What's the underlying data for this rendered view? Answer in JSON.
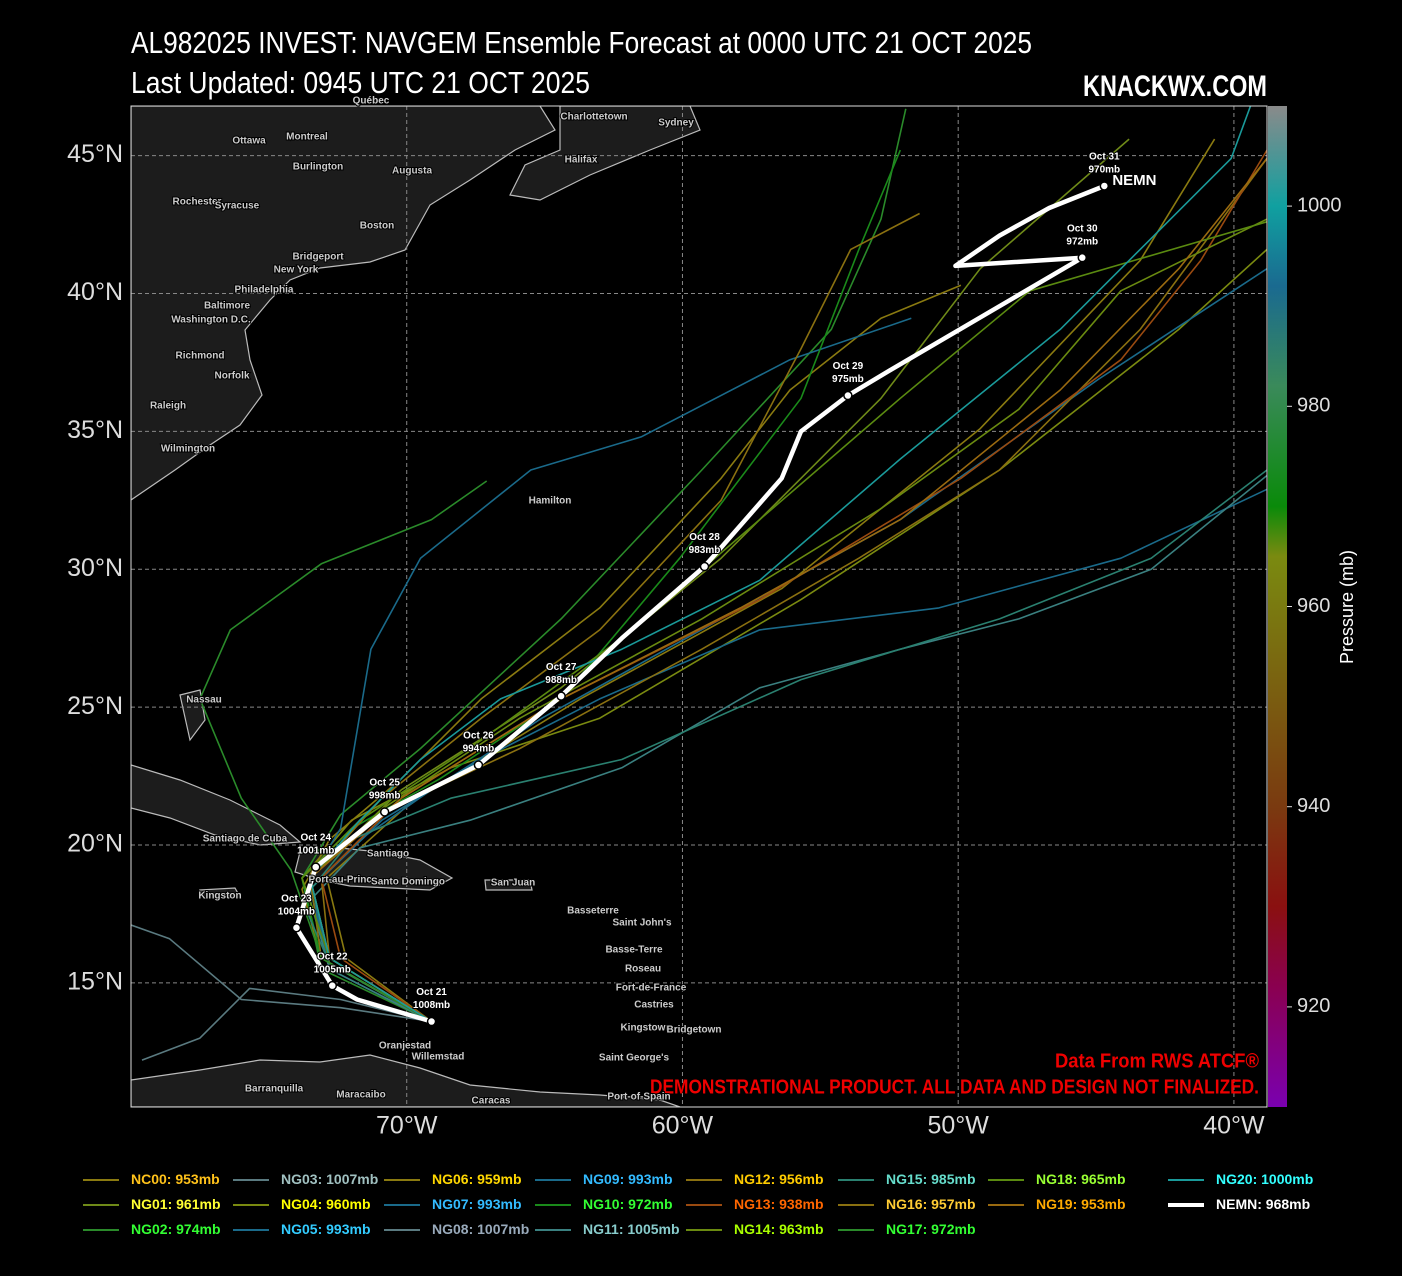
{
  "chart_data": {
    "type": "track-map",
    "title": "AL982025 INVEST: NAVGEM Ensemble Forecast at 0000 UTC 21 OCT 2025",
    "subtitle": "Last Updated: 0945 UTC 21 OCT 2025",
    "brand": "KNACKWX.COM",
    "data_source": "Data From RWS ATCF®",
    "disclaimer": "DEMONSTRATIONAL PRODUCT. ALL DATA AND DESIGN NOT FINALIZED.",
    "xlim": [
      -80,
      -38.8
    ],
    "ylim": [
      10.5,
      46.8
    ],
    "xticks": [
      {
        "value": -70,
        "label": "70°W"
      },
      {
        "value": -60,
        "label": "60°W"
      },
      {
        "value": -50,
        "label": "50°W"
      },
      {
        "value": -40,
        "label": "40°W"
      }
    ],
    "yticks": [
      {
        "value": 15,
        "label": "15°N"
      },
      {
        "value": 20,
        "label": "20°N"
      },
      {
        "value": 25,
        "label": "25°N"
      },
      {
        "value": 30,
        "label": "30°N"
      },
      {
        "value": 35,
        "label": "35°N"
      },
      {
        "value": 40,
        "label": "40°N"
      },
      {
        "value": 45,
        "label": "45°N"
      }
    ],
    "grid": true,
    "colorbar": {
      "label": "Pressure (mb)",
      "lim": [
        910,
        1010
      ],
      "ticks": [
        920,
        940,
        960,
        980,
        1000
      ]
    },
    "places": [
      "Québec",
      "Charlottetown",
      "Sydney",
      "Ottawa",
      "Montreal",
      "Burlington",
      "Augusta",
      "Halifax",
      "Rochester",
      "Syracuse",
      "Boston",
      "Bridgeport",
      "New York",
      "Philadelphia",
      "Baltimore",
      "Washington D.C.",
      "Richmond",
      "Norfolk",
      "Raleigh",
      "Wilmington",
      "Hamilton",
      "Nassau",
      "Santiago de Cuba",
      "Santiago",
      "Port-au-Prince",
      "Santo Domingo",
      "Kingston",
      "San Juan",
      "Basseterre",
      "Saint John's",
      "Basse-Terre",
      "Roseau",
      "Fort-de-France",
      "Castries",
      "Kingstown",
      "Bridgetown",
      "Saint George's",
      "Oranjestad",
      "Willemstad",
      "Barranquilla",
      "Maracaibo",
      "Caracas",
      "Port-of-Spain"
    ],
    "legend_separator": ": ",
    "series": [
      {
        "name": "NC00",
        "value": 953,
        "value_label": "953mb",
        "color": "#8a7a10",
        "label_color": "#ffc21a",
        "lon": [
          -69.1,
          -72.2,
          -72.9,
          -69.9,
          -63.7,
          -56.4,
          -49.2,
          -43.4,
          -40.7
        ],
        "lat": [
          13.6,
          15.9,
          18.8,
          21.5,
          25.3,
          29.3,
          35.1,
          41.2,
          45.6
        ]
      },
      {
        "name": "NG01",
        "value": 961,
        "value_label": "961mb",
        "color": "#6f8a18",
        "label_color": "#ffff33",
        "lon": [
          -69.1,
          -72.8,
          -73.5,
          -70.2,
          -64.4,
          -58.6,
          -52.8,
          -49.2,
          -43.8
        ],
        "lat": [
          13.6,
          15.7,
          18.8,
          22.0,
          25.7,
          30.4,
          36.2,
          40.9,
          45.6
        ]
      },
      {
        "name": "NG02",
        "value": 974,
        "value_label": "974mb",
        "color": "#2a8a2a",
        "label_color": "#33ff33",
        "lon": [
          -69.1,
          -73.1,
          -73.8,
          -72.4,
          -69.5,
          -64.4,
          -59.3,
          -54.6,
          -52.8,
          -51.9
        ],
        "lat": [
          13.6,
          15.5,
          18.8,
          21.1,
          23.5,
          28.2,
          33.6,
          38.7,
          42.7,
          46.7
        ]
      },
      {
        "name": "NG03",
        "value": 1007,
        "value_label": "1007mb",
        "color": "#5a7a80",
        "label_color": "#a0c0c0",
        "lon": [
          -69.1,
          -72.4,
          -75.7,
          -77.5,
          -79.6
        ],
        "lat": [
          13.6,
          14.4,
          14.8,
          13.0,
          12.2
        ]
      },
      {
        "name": "NG04",
        "value": 960,
        "value_label": "960mb",
        "color": "#7a8a10",
        "label_color": "#ffff00",
        "lon": [
          -69.1,
          -72.8,
          -73.8,
          -72.0,
          -68.4,
          -63.0,
          -55.7,
          -48.5,
          -42.0,
          -38.8
        ],
        "lat": [
          13.6,
          15.9,
          18.8,
          20.9,
          22.8,
          24.6,
          28.9,
          33.6,
          38.7,
          41.6
        ]
      },
      {
        "name": "NG05",
        "value": 993,
        "value_label": "993mb",
        "color": "#1a6a8a",
        "label_color": "#33ccff",
        "lon": [
          -69.1,
          -72.8,
          -73.5,
          -71.7,
          -69.1,
          -65.1,
          -58.6,
          -52.1,
          -44.9,
          -38.8
        ],
        "lat": [
          13.6,
          15.5,
          18.4,
          20.2,
          22.0,
          24.6,
          28.2,
          31.8,
          36.9,
          40.9
        ]
      },
      {
        "name": "NG06",
        "value": 959,
        "value_label": "959mb",
        "color": "#8a7a10",
        "label_color": "#ffd700",
        "lon": [
          -69.1,
          -73.1,
          -73.8,
          -72.8,
          -70.2,
          -67.3,
          -63.0,
          -58.6,
          -56.1,
          -52.8,
          -49.9
        ],
        "lat": [
          13.6,
          15.9,
          18.4,
          20.2,
          22.4,
          25.3,
          28.6,
          33.3,
          36.5,
          39.1,
          40.3
        ]
      },
      {
        "name": "NG07",
        "value": 993,
        "value_label": "993mb",
        "color": "#1a6a8a",
        "label_color": "#33bbff",
        "lon": [
          -69.1,
          -72.8,
          -73.5,
          -72.4,
          -71.3,
          -69.5,
          -65.5,
          -61.5,
          -56.1,
          -51.7
        ],
        "lat": [
          13.6,
          15.9,
          18.8,
          20.6,
          27.1,
          30.4,
          33.6,
          34.8,
          37.6,
          39.1
        ]
      },
      {
        "name": "NG08",
        "value": 1007,
        "value_label": "1007mb",
        "color": "#5a7a80",
        "label_color": "#99aabb",
        "lon": [
          -69.1,
          -72.4,
          -76.0,
          -78.6,
          -80.0
        ],
        "lat": [
          13.6,
          14.1,
          14.4,
          16.6,
          17.1
        ]
      },
      {
        "name": "NG09",
        "value": 993,
        "value_label": "993mb",
        "color": "#1a6a8a",
        "label_color": "#33bbff",
        "lon": [
          -69.1,
          -72.8,
          -73.5,
          -70.9,
          -67.3,
          -63.0,
          -57.2,
          -50.7,
          -44.1,
          -38.8
        ],
        "lat": [
          13.6,
          15.9,
          18.4,
          20.9,
          23.1,
          25.3,
          27.8,
          28.6,
          30.4,
          32.9
        ]
      },
      {
        "name": "NG10",
        "value": 972,
        "value_label": "972mb",
        "color": "#1a8a1a",
        "label_color": "#33ff33",
        "lon": [
          -69.1,
          -73.1,
          -73.8,
          -72.0,
          -68.8,
          -64.4,
          -60.1,
          -55.7,
          -53.6,
          -52.1
        ],
        "lat": [
          13.6,
          15.9,
          18.8,
          20.6,
          22.4,
          25.3,
          30.4,
          36.2,
          41.6,
          45.2
        ]
      },
      {
        "name": "NG11",
        "value": 1005,
        "value_label": "1005mb",
        "color": "#3a8080",
        "label_color": "#88cccc",
        "lon": [
          -69.1,
          -72.8,
          -73.5,
          -71.7,
          -67.7,
          -62.2,
          -57.2,
          -52.1,
          -47.8,
          -43.0,
          -38.8
        ],
        "lat": [
          13.6,
          15.5,
          18.0,
          19.9,
          20.9,
          22.8,
          25.7,
          27.1,
          28.2,
          30.0,
          33.4
        ]
      },
      {
        "name": "NG12",
        "value": 956,
        "value_label": "956mb",
        "color": "#8a7010",
        "label_color": "#ffcc00",
        "lon": [
          -69.1,
          -72.8,
          -73.1,
          -70.6,
          -65.9,
          -59.3,
          -53.6,
          -48.5,
          -43.4,
          -38.8
        ],
        "lat": [
          13.6,
          15.9,
          18.8,
          21.3,
          23.5,
          27.1,
          30.4,
          33.6,
          38.7,
          44.9
        ]
      },
      {
        "name": "NG13",
        "value": 938,
        "value_label": "938mb",
        "color": "#9a4a10",
        "label_color": "#ff6600",
        "lon": [
          -69.1,
          -72.4,
          -73.1,
          -70.2,
          -64.4,
          -57.2,
          -49.9,
          -44.1,
          -41.2,
          -38.8
        ],
        "lat": [
          13.6,
          15.9,
          18.8,
          21.7,
          25.3,
          28.9,
          33.3,
          37.6,
          41.2,
          45.2
        ]
      },
      {
        "name": "NG14",
        "value": 963,
        "value_label": "963mb",
        "color": "#6a8a10",
        "label_color": "#aaff00",
        "lon": [
          -69.1,
          -72.8,
          -73.5,
          -70.9,
          -65.9,
          -59.3,
          -52.8,
          -47.8,
          -44.1,
          -38.8
        ],
        "lat": [
          13.6,
          15.9,
          18.8,
          21.3,
          24.6,
          28.2,
          32.2,
          35.8,
          40.1,
          42.7
        ]
      },
      {
        "name": "NG15",
        "value": 985,
        "value_label": "985mb",
        "color": "#2a8070",
        "label_color": "#66ddcc",
        "lon": [
          -69.1,
          -72.8,
          -73.8,
          -72.0,
          -68.4,
          -62.2,
          -55.7,
          -48.5,
          -43.0,
          -38.8
        ],
        "lat": [
          13.6,
          15.7,
          18.0,
          20.2,
          21.7,
          23.1,
          26.0,
          28.2,
          30.4,
          33.6
        ]
      },
      {
        "name": "NG16",
        "value": 957,
        "value_label": "957mb",
        "color": "#8a7010",
        "label_color": "#ffcc33",
        "lon": [
          -69.1,
          -73.1,
          -73.5,
          -70.9,
          -67.3,
          -63.0,
          -58.6,
          -55.7,
          -53.9,
          -51.4
        ],
        "lat": [
          13.6,
          15.9,
          18.8,
          21.7,
          24.6,
          27.8,
          32.5,
          38.0,
          41.6,
          42.9
        ]
      },
      {
        "name": "NG17",
        "value": 972,
        "value_label": "972mb",
        "color": "#2a8a2a",
        "label_color": "#33ff33",
        "lon": [
          -69.1,
          -73.1,
          -74.2,
          -76.0,
          -77.5,
          -76.4,
          -73.1,
          -69.1,
          -67.1
        ],
        "lat": [
          13.6,
          15.9,
          19.1,
          21.7,
          25.3,
          27.8,
          30.2,
          31.8,
          33.2
        ]
      },
      {
        "name": "NG18",
        "value": 965,
        "value_label": "965mb",
        "color": "#5a8a10",
        "label_color": "#99ff33",
        "lon": [
          -69.1,
          -72.8,
          -73.8,
          -71.7,
          -67.3,
          -62.2,
          -57.2,
          -52.1,
          -47.4,
          -38.8
        ],
        "lat": [
          13.6,
          15.9,
          18.8,
          20.9,
          23.8,
          27.5,
          31.8,
          36.2,
          40.1,
          42.6
        ]
      },
      {
        "name": "NG19",
        "value": 953,
        "value_label": "953mb",
        "color": "#9a6a10",
        "label_color": "#ffaa00",
        "lon": [
          -69.1,
          -72.8,
          -73.5,
          -70.2,
          -64.4,
          -57.9,
          -52.1,
          -46.3,
          -42.0,
          -38.8
        ],
        "lat": [
          13.6,
          15.9,
          18.8,
          21.7,
          25.3,
          28.6,
          31.8,
          36.5,
          40.9,
          44.9
        ]
      },
      {
        "name": "NG20",
        "value": 1000,
        "value_label": "1000mb",
        "color": "#1a9a9a",
        "label_color": "#33ffff",
        "lon": [
          -69.1,
          -72.8,
          -73.5,
          -71.7,
          -69.5,
          -66.6,
          -62.2,
          -57.2,
          -52.1,
          -46.3,
          -40.1,
          -39.4
        ],
        "lat": [
          13.6,
          15.9,
          18.8,
          20.9,
          23.1,
          25.3,
          27.1,
          29.6,
          34.0,
          38.7,
          44.9,
          46.8
        ]
      }
    ],
    "mean_track": {
      "name": "NEMN",
      "value": 968,
      "value_label": "968mb",
      "color": "#ffffff",
      "lon": [
        -69.1,
        -71.8,
        -72.7,
        -74.0,
        -73.3,
        -70.8,
        -67.4,
        -64.4,
        -62.2,
        -59.2,
        -56.4,
        -55.7,
        -54.0,
        -52.5,
        -45.5,
        -50.1,
        -48.5,
        -46.7,
        -44.7
      ],
      "lat": [
        13.6,
        14.4,
        14.9,
        17.0,
        19.2,
        21.2,
        22.9,
        25.4,
        27.5,
        30.1,
        33.3,
        35.0,
        36.3,
        37.2,
        41.3,
        41.0,
        42.1,
        43.1,
        43.9
      ],
      "dates": [
        "Oct 21",
        null,
        "Oct 22",
        "Oct 23",
        "Oct 24",
        "Oct 25",
        "Oct 26",
        "Oct 27",
        null,
        "Oct 28",
        null,
        null,
        "Oct 29",
        null,
        "Oct 30",
        null,
        null,
        null,
        "Oct 31"
      ],
      "pressures": [
        1008,
        null,
        1005,
        1004,
        1001,
        998,
        994,
        988,
        null,
        983,
        null,
        null,
        975,
        null,
        972,
        null,
        null,
        null,
        970
      ],
      "pressure_labels": [
        "1008mb",
        null,
        "1005mb",
        "1004mb",
        "1001mb",
        "998mb",
        "994mb",
        "988mb",
        null,
        "983mb",
        null,
        null,
        "975mb",
        null,
        "972mb",
        null,
        null,
        null,
        "970mb"
      ]
    }
  }
}
